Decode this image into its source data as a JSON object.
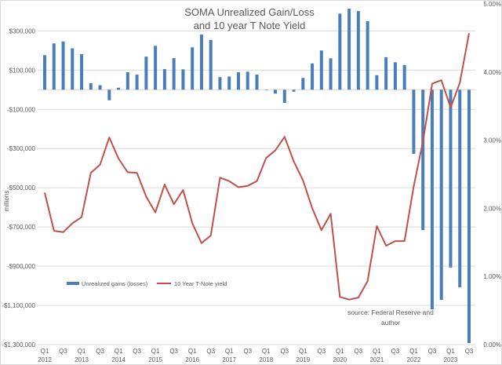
{
  "chart_data": {
    "type": "bar+line",
    "title_lines": [
      "SOMA Unrealized Gain/Loss",
      "and 10 year T Note Yield"
    ],
    "ylabel": "millions",
    "annotation_lines": [
      "source: Federal Reserve and",
      "author"
    ],
    "categories": [
      "Q1 2012",
      "Q2 2012",
      "Q3 2012",
      "Q4 2012",
      "Q1 2013",
      "Q2 2013",
      "Q3 2013",
      "Q4 2013",
      "Q1 2014",
      "Q2 2014",
      "Q3 2014",
      "Q4 2014",
      "Q1 2015",
      "Q2 2015",
      "Q3 2015",
      "Q4 2015",
      "Q1 2016",
      "Q2 2016",
      "Q3 2016",
      "Q4 2016",
      "Q1 2017",
      "Q2 2017",
      "Q3 2017",
      "Q4 2017",
      "Q1 2018",
      "Q2 2018",
      "Q3 2018",
      "Q4 2018",
      "Q1 2019",
      "Q2 2019",
      "Q3 2019",
      "Q4 2019",
      "Q1 2020",
      "Q2 2020",
      "Q3 2020",
      "Q4 2020",
      "Q1 2021",
      "Q2 2021",
      "Q3 2021",
      "Q4 2021",
      "Q1 2022",
      "Q2 2022",
      "Q3 2022",
      "Q4 2022",
      "Q1 2023",
      "Q2 2023",
      "Q3 2023"
    ],
    "x_tick_labels": [
      {
        "q": "Q1",
        "y": "2012"
      },
      {
        "q": "Q3",
        "y": ""
      },
      {
        "q": "Q1",
        "y": "2013"
      },
      {
        "q": "Q3",
        "y": ""
      },
      {
        "q": "Q1",
        "y": "2014"
      },
      {
        "q": "Q3",
        "y": ""
      },
      {
        "q": "Q1",
        "y": "2015"
      },
      {
        "q": "Q3",
        "y": ""
      },
      {
        "q": "Q1",
        "y": "2016"
      },
      {
        "q": "Q3",
        "y": ""
      },
      {
        "q": "Q1",
        "y": "2017"
      },
      {
        "q": "Q3",
        "y": ""
      },
      {
        "q": "Q1",
        "y": "2018"
      },
      {
        "q": "Q3",
        "y": ""
      },
      {
        "q": "Q1",
        "y": "2019"
      },
      {
        "q": "Q3",
        "y": ""
      },
      {
        "q": "Q1",
        "y": "2020"
      },
      {
        "q": "Q3",
        "y": ""
      },
      {
        "q": "Q1",
        "y": "2021"
      },
      {
        "q": "Q3",
        "y": ""
      },
      {
        "q": "Q1",
        "y": "2022"
      },
      {
        "q": "Q3",
        "y": ""
      },
      {
        "q": "Q1",
        "y": "2023"
      },
      {
        "q": "Q3",
        "y": ""
      }
    ],
    "left_axis": {
      "ticks": [
        300000,
        100000,
        -100000,
        -300000,
        -500000,
        -700000,
        -900000,
        -1100000,
        -1300000
      ],
      "tick_labels": [
        "$300,000",
        "$100,000",
        "-$100,000",
        "-$300,000",
        "-$500,000",
        "-$700,000",
        "-$900,000",
        "-$1,100,000",
        "-$1,300,000"
      ],
      "ylim": [
        -1300000,
        437500
      ]
    },
    "right_axis": {
      "tick_labels": [
        "0.00%",
        "1.00%",
        "2.00%",
        "3.00%",
        "4.00%",
        "5.00%"
      ],
      "ticks": [
        0,
        1,
        2,
        3,
        4,
        5
      ],
      "ylim": [
        0,
        5
      ]
    },
    "grid": "horizontal",
    "legend_position": "bottom-left",
    "series": [
      {
        "name": "Unrealized gains (losses)",
        "type": "bar",
        "axis": "left",
        "color": "#4a7ebb",
        "values": [
          176000,
          236000,
          246000,
          211000,
          181000,
          33000,
          23000,
          -54000,
          10000,
          89000,
          77000,
          169000,
          224000,
          105000,
          161000,
          104000,
          216000,
          281000,
          254000,
          64000,
          67000,
          89000,
          92000,
          77000,
          0,
          -20000,
          -67000,
          -10000,
          60000,
          134000,
          200000,
          160000,
          388000,
          413000,
          401000,
          350000,
          74000,
          166000,
          140000,
          126000,
          -327000,
          -716000,
          -1120000,
          -1072000,
          -907000,
          -1008000,
          -1292000
        ]
      },
      {
        "name": "10 Year T-Note yield",
        "type": "line",
        "axis": "right",
        "color": "#c0504d",
        "values": [
          2.23,
          1.67,
          1.65,
          1.78,
          1.87,
          2.52,
          2.64,
          3.04,
          2.73,
          2.53,
          2.52,
          2.17,
          1.94,
          2.35,
          2.06,
          2.27,
          1.78,
          1.49,
          1.6,
          2.45,
          2.4,
          2.31,
          2.33,
          2.4,
          2.74,
          2.85,
          3.05,
          2.69,
          2.41,
          2.0,
          1.68,
          1.92,
          0.7,
          0.66,
          0.69,
          0.93,
          1.74,
          1.45,
          1.52,
          1.52,
          2.32,
          2.98,
          3.83,
          3.88,
          3.48,
          3.84,
          4.57
        ]
      }
    ]
  }
}
